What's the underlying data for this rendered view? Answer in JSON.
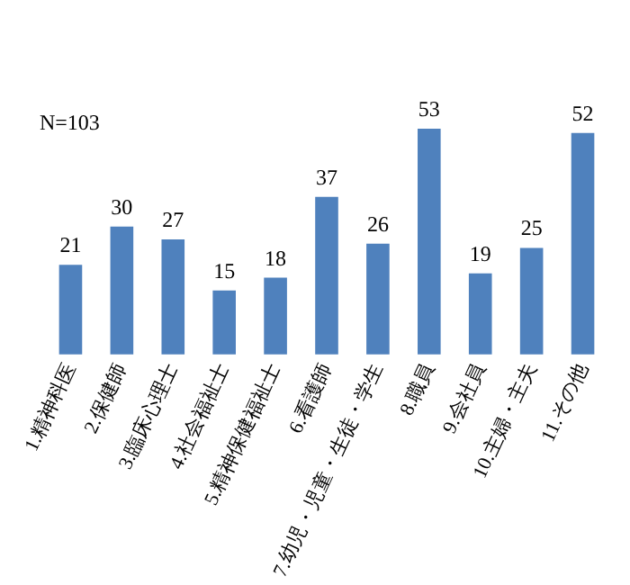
{
  "chart_data": {
    "type": "bar",
    "categories": [
      "1.精神科医",
      "2.保健師",
      "3.臨床心理士",
      "4.社会福祉士",
      "5.精神保健福祉士",
      "6.看護師",
      "7.幼児・児童・生徒・学生",
      "8.職員",
      "9.会社員",
      "10.主婦・主夫",
      "11.その他"
    ],
    "values": [
      21,
      30,
      27,
      15,
      18,
      37,
      26,
      53,
      19,
      25,
      52
    ],
    "color": "#4f81bd",
    "data_labels": true,
    "tick_labels": "x",
    "annotations": [
      "N=103"
    ]
  }
}
